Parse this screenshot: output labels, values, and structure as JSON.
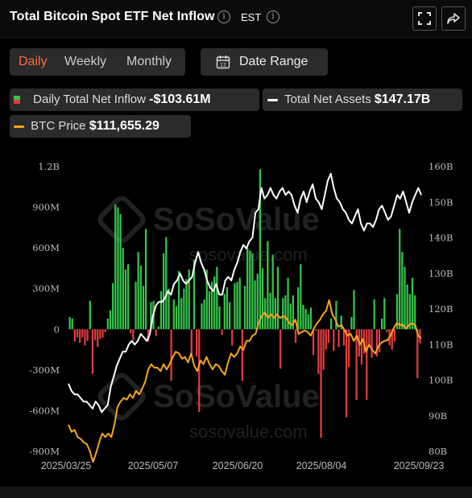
{
  "header": {
    "title": "Total Bitcoin Spot ETF Net Inflow",
    "timezone": "EST"
  },
  "tabs": [
    {
      "label": "Daily",
      "active": true
    },
    {
      "label": "Weekly",
      "active": false
    },
    {
      "label": "Monthly",
      "active": false
    }
  ],
  "date_range_label": "Date Range",
  "legend": {
    "inflow": {
      "label": "Daily Total Net Inflow",
      "value": "-$103.61M"
    },
    "assets": {
      "label": "Total Net Assets",
      "value": "$147.17B"
    },
    "price": {
      "label": "BTC Price",
      "value": "$111,655.29"
    }
  },
  "watermark": {
    "brand": "SoSoValue",
    "url": "sosovalue.com"
  },
  "colors": {
    "positive_bar": "#35c44a",
    "negative_bar": "#e03c3c",
    "assets_line": "#ffffff",
    "price_line": "#f5a623",
    "accent": "#ff6a3d"
  },
  "chart_data": {
    "type": "bar",
    "x_start": "2025/03/25",
    "x_end": "2025/09/23",
    "x_tick_labels": [
      "2025/03/25",
      "2025/05/07",
      "2025/06/20",
      "2025/08/04",
      "2025/09/23"
    ],
    "y_left": {
      "ticks": [
        "1.2B",
        "900M",
        "600M",
        "300M",
        "0",
        "-300M",
        "-600M",
        "-900M"
      ],
      "range_millions": [
        -900,
        1200
      ]
    },
    "y_right": {
      "ticks": [
        "160B",
        "150B",
        "140B",
        "130B",
        "120B",
        "110B",
        "100B",
        "90B",
        "80B"
      ],
      "range_billions": [
        80,
        160
      ]
    },
    "series": [
      {
        "name": "Daily Total Net Inflow",
        "unit": "USD millions",
        "values": [
          90,
          80,
          -90,
          -60,
          -100,
          -60,
          -120,
          -85,
          210,
          -330,
          -80,
          -130,
          -70,
          -60,
          -20,
          80,
          140,
          340,
          920,
          900,
          850,
          600,
          440,
          480,
          -30,
          -80,
          350,
          570,
          470,
          320,
          740,
          -90,
          200,
          210,
          -50,
          20,
          280,
          560,
          680,
          300,
          -380,
          220,
          170,
          430,
          230,
          300,
          370,
          440,
          -190,
          510,
          -200,
          -610,
          190,
          220,
          440,
          280,
          350,
          390,
          460,
          170,
          -40,
          260,
          310,
          200,
          -120,
          340,
          350,
          380,
          -380,
          320,
          600,
          580,
          560,
          360,
          410,
          1180,
          450,
          230,
          650,
          270,
          550,
          230,
          460,
          -290,
          230,
          250,
          380,
          190,
          250,
          -100,
          310,
          480,
          180,
          150,
          110,
          160,
          -190,
          -10,
          -330,
          -800,
          -300,
          -150,
          -100,
          80,
          -160,
          210,
          -130,
          100,
          -120,
          -650,
          -280,
          90,
          290,
          -520,
          -200,
          -260,
          -180,
          -520,
          -120,
          -210,
          220,
          -200,
          -170,
          80,
          230,
          -20,
          -120,
          -150,
          -90,
          260,
          740,
          570,
          460,
          330,
          260,
          380,
          250,
          -360,
          -104
        ]
      },
      {
        "name": "Total Net Assets",
        "unit": "USD billions",
        "values": [
          99,
          97,
          96,
          96,
          95,
          94,
          94,
          93,
          92,
          94,
          93,
          91,
          92,
          93,
          98,
          101,
          104,
          106,
          108,
          108,
          110,
          111,
          110,
          111,
          113,
          112,
          111,
          113,
          118,
          121,
          122,
          122,
          123,
          125,
          124,
          127,
          128,
          130,
          128,
          127,
          128,
          129,
          133,
          136,
          133,
          131,
          128,
          126,
          125,
          127,
          124,
          124,
          128,
          129,
          128,
          131,
          133,
          136,
          138,
          137,
          139,
          140,
          147,
          148,
          154,
          151,
          152,
          154,
          152,
          151,
          153,
          154,
          152,
          153,
          152,
          149,
          147,
          151,
          153,
          150,
          153,
          155,
          151,
          150,
          148,
          152,
          156,
          158,
          154,
          151,
          150,
          148,
          147,
          145,
          144,
          146,
          148,
          144,
          142,
          144,
          144,
          143,
          145,
          148,
          149,
          147,
          145,
          146,
          149,
          152,
          151,
          153,
          150,
          147,
          150,
          152,
          154,
          152
        ]
      },
      {
        "name": "BTC Price",
        "unit": "USD",
        "values": [
          87500,
          85500,
          86000,
          84000,
          83500,
          82500,
          82000,
          80000,
          77000,
          79500,
          82500,
          85000,
          84000,
          85000,
          84000,
          87500,
          92500,
          94000,
          95000,
          94500,
          96000,
          95000,
          97000,
          96000,
          97500,
          99500,
          103000,
          104500,
          103500,
          103500,
          102500,
          104500,
          103000,
          104500,
          106500,
          108000,
          107500,
          106000,
          106500,
          105000,
          107500,
          104000,
          102500,
          105500,
          104500,
          106500,
          104500,
          103000,
          104500,
          104000,
          102500,
          101500,
          105000,
          107500,
          106500,
          107500,
          109500,
          108500,
          111000,
          111000,
          112500,
          113000,
          116000,
          118000,
          119000,
          117500,
          118500,
          117500,
          118500,
          117500,
          118000,
          117500,
          116000,
          115500,
          117000,
          113000,
          113500,
          114000,
          113500,
          112500,
          114500,
          116000,
          117000,
          118500,
          119500,
          122500,
          118500,
          117000,
          115000,
          115500,
          114000,
          112500,
          113000,
          111000,
          112500,
          110000,
          111500,
          108000,
          110000,
          108500,
          107500,
          109500,
          110500,
          111000,
          111200,
          112500,
          114500,
          116000,
          115500,
          115500,
          114500,
          115500,
          116000,
          115500,
          112500,
          111700
        ]
      }
    ]
  }
}
